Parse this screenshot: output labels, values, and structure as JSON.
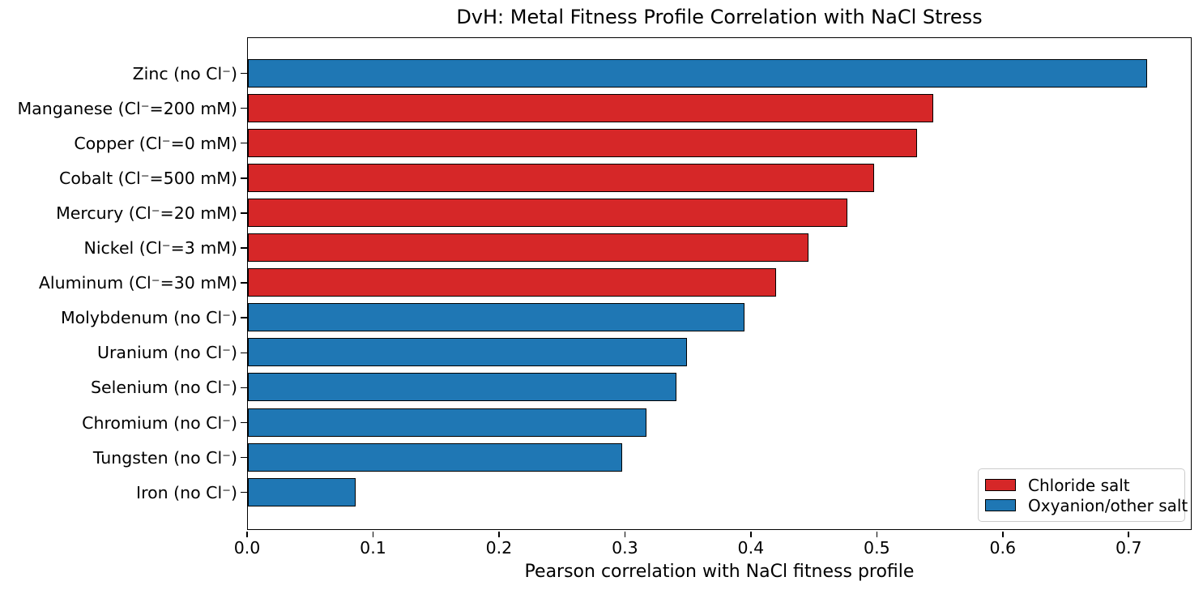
{
  "chart_data": {
    "type": "bar",
    "orientation": "horizontal",
    "title": "DvH: Metal Fitness Profile Correlation with NaCl Stress",
    "xlabel": "Pearson correlation with NaCl fitness profile",
    "ylabel": "",
    "xlim": [
      0.0,
      0.75
    ],
    "xticks": [
      0.0,
      0.1,
      0.2,
      0.3,
      0.4,
      0.5,
      0.6,
      0.7
    ],
    "xtick_labels": [
      "0.0",
      "0.1",
      "0.2",
      "0.3",
      "0.4",
      "0.5",
      "0.6",
      "0.7"
    ],
    "grid": false,
    "bar_edge_color": "#000000",
    "colors": {
      "chloride": "#d62728",
      "oxyanion": "#1f77b4"
    },
    "categories": [
      "Zinc (no Cl⁻)",
      "Manganese (Cl⁻=200 mM)",
      "Copper (Cl⁻=0 mM)",
      "Cobalt (Cl⁻=500 mM)",
      "Mercury (Cl⁻=20 mM)",
      "Nickel (Cl⁻=3 mM)",
      "Aluminum (Cl⁻=30 mM)",
      "Molybdenum (no Cl⁻)",
      "Uranium (no Cl⁻)",
      "Selenium (no Cl⁻)",
      "Chromium (no Cl⁻)",
      "Tungsten (no Cl⁻)",
      "Iron (no Cl⁻)"
    ],
    "values": [
      0.715,
      0.545,
      0.532,
      0.498,
      0.477,
      0.446,
      0.42,
      0.395,
      0.349,
      0.341,
      0.317,
      0.298,
      0.086
    ],
    "groups": [
      "oxyanion",
      "chloride",
      "chloride",
      "chloride",
      "chloride",
      "chloride",
      "chloride",
      "oxyanion",
      "oxyanion",
      "oxyanion",
      "oxyanion",
      "oxyanion",
      "oxyanion"
    ],
    "legend": {
      "position": "lower right",
      "entries": [
        {
          "label": "Chloride salt",
          "color": "#d62728"
        },
        {
          "label": "Oxyanion/other salt",
          "color": "#1f77b4"
        }
      ]
    }
  }
}
